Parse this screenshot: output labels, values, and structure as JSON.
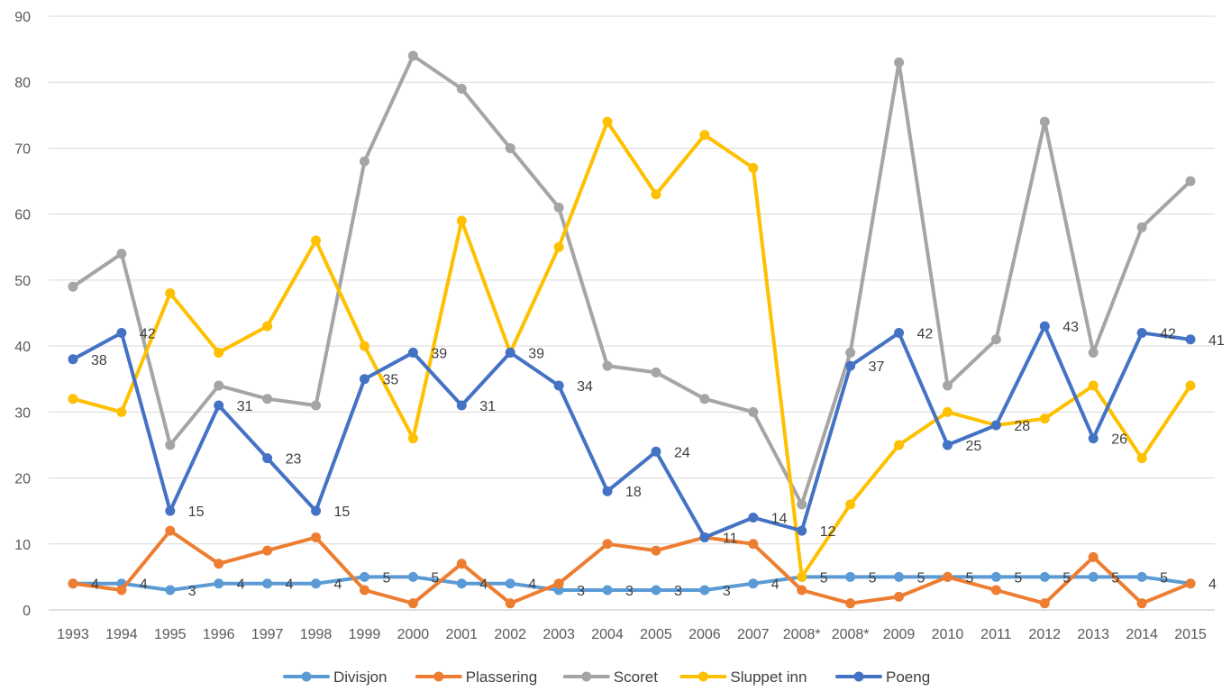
{
  "chart_data": {
    "type": "line",
    "title": "",
    "xlabel": "",
    "ylabel": "",
    "ylim": [
      0,
      90
    ],
    "yticks": [
      0,
      10,
      20,
      30,
      40,
      50,
      60,
      70,
      80,
      90
    ],
    "grid": true,
    "legend_position": "bottom",
    "categories": [
      "1993",
      "1994",
      "1995",
      "1996",
      "1997",
      "1998",
      "1999",
      "2000",
      "2001",
      "2002",
      "2003",
      "2004",
      "2005",
      "2006",
      "2007",
      "2008*",
      "2008*",
      "2009",
      "2010",
      "2011",
      "2012",
      "2013",
      "2014",
      "2015"
    ],
    "series": [
      {
        "name": "Divisjon",
        "color": "#5B9BD5",
        "labels": true,
        "values": [
          4,
          4,
          3,
          4,
          4,
          4,
          5,
          5,
          4,
          4,
          3,
          3,
          3,
          3,
          4,
          5,
          5,
          5,
          5,
          5,
          5,
          5,
          5,
          4
        ]
      },
      {
        "name": "Plassering",
        "color": "#ED7D31",
        "labels": false,
        "values": [
          4,
          3,
          12,
          7,
          9,
          11,
          3,
          1,
          7,
          1,
          4,
          10,
          9,
          11,
          10,
          3,
          1,
          2,
          5,
          3,
          1,
          8,
          1,
          4
        ]
      },
      {
        "name": "Scoret",
        "color": "#A5A5A5",
        "labels": false,
        "values": [
          49,
          54,
          25,
          34,
          32,
          31,
          68,
          84,
          79,
          70,
          61,
          37,
          36,
          32,
          30,
          16,
          39,
          83,
          34,
          41,
          74,
          39,
          58,
          65
        ]
      },
      {
        "name": "Sluppet inn",
        "color": "#FFC000",
        "labels": false,
        "values": [
          32,
          30,
          48,
          39,
          43,
          56,
          40,
          26,
          59,
          39,
          55,
          74,
          63,
          72,
          67,
          5,
          16,
          25,
          30,
          28,
          29,
          34,
          23,
          34
        ]
      },
      {
        "name": "Poeng",
        "color": "#4472C4",
        "labels": true,
        "values": [
          38,
          42,
          15,
          31,
          23,
          15,
          35,
          39,
          31,
          39,
          34,
          18,
          24,
          11,
          14,
          12,
          37,
          42,
          25,
          28,
          43,
          26,
          42,
          41
        ]
      }
    ]
  }
}
